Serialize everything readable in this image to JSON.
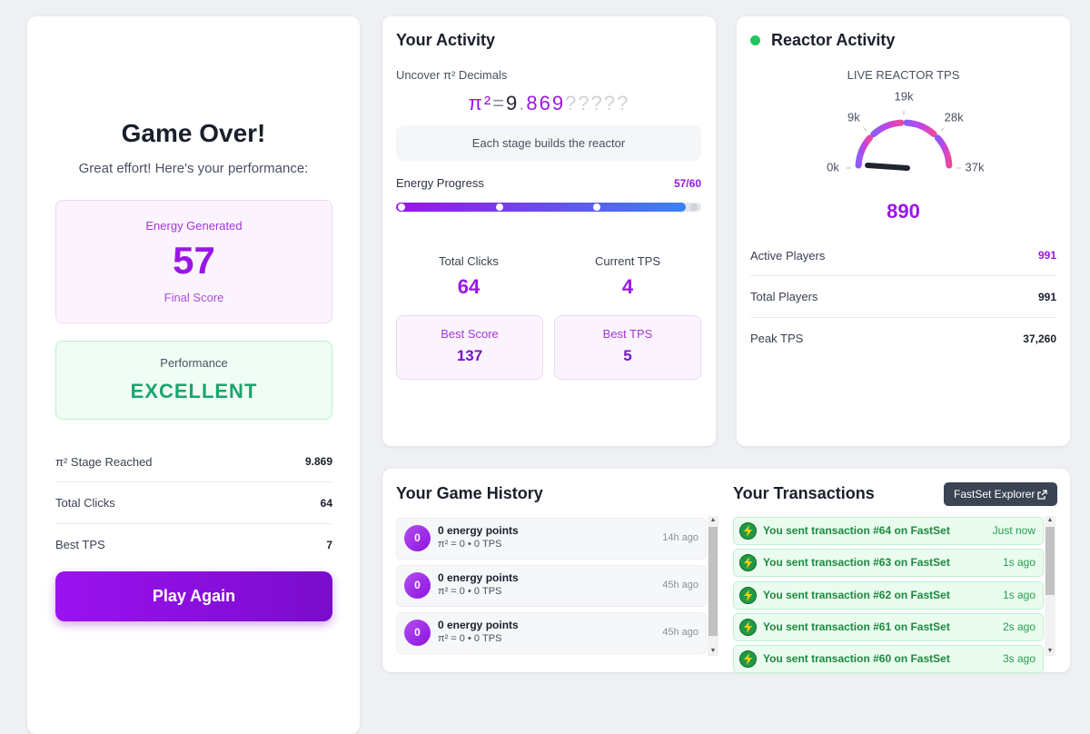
{
  "game_over": {
    "title": "Game Over!",
    "subtitle": "Great effort! Here's your performance:",
    "energy": {
      "label": "Energy Generated",
      "value": "57",
      "caption": "Final Score"
    },
    "performance": {
      "label": "Performance",
      "value": "EXCELLENT"
    },
    "stats": [
      {
        "label": "π² Stage Reached",
        "value": "9.869"
      },
      {
        "label": "Total Clicks",
        "value": "64"
      },
      {
        "label": "Best TPS",
        "value": "7"
      }
    ],
    "button": "Play Again"
  },
  "activity": {
    "title": "Your Activity",
    "decimals_label": "Uncover π² Decimals",
    "pi": {
      "symbol": "π²",
      "equals": "=",
      "integer": "9",
      "dot": ".",
      "found": "869",
      "hidden": "?????"
    },
    "hint": "Each stage builds the reactor",
    "progress": {
      "label": "Energy Progress",
      "value": 57,
      "separator": "/",
      "max": 60
    },
    "stats": [
      {
        "label": "Total Clicks",
        "value": "64"
      },
      {
        "label": "Current TPS",
        "value": "4"
      }
    ],
    "bests": [
      {
        "label": "Best Score",
        "value": "137"
      },
      {
        "label": "Best TPS",
        "value": "5"
      }
    ]
  },
  "reactor": {
    "title": "Reactor Activity",
    "gauge": {
      "label": "LIVE REACTOR TPS",
      "value": 890,
      "ticks": [
        {
          "value": 0,
          "label": "0k"
        },
        {
          "value": 9315,
          "label": "9k"
        },
        {
          "value": 18630,
          "label": "19k"
        },
        {
          "value": 27945,
          "label": "28k"
        },
        {
          "value": 37260,
          "label": "37k"
        }
      ]
    },
    "rows": [
      {
        "label": "Active Players",
        "value": "991"
      },
      {
        "label": "Total Players",
        "value": "991"
      },
      {
        "label": "Peak TPS",
        "value": "37,260"
      }
    ]
  },
  "history": {
    "title": "Your Game History",
    "items": [
      {
        "icon": "0",
        "title": "0 energy points",
        "detail": "π² = 0 • 0 TPS",
        "time": "14h ago"
      },
      {
        "icon": "0",
        "title": "0 energy points",
        "detail": "π² = 0 • 0 TPS",
        "time": "45h ago"
      },
      {
        "icon": "0",
        "title": "0 energy points",
        "detail": "π² = 0 • 0 TPS",
        "time": "45h ago"
      }
    ]
  },
  "transactions": {
    "title": "Your Transactions",
    "button": "FastSet Explorer",
    "items": [
      {
        "text": "You sent transaction #64 on FastSet",
        "time": "Just now"
      },
      {
        "text": "You sent transaction #63 on FastSet",
        "time": "1s ago"
      },
      {
        "text": "You sent transaction #62 on FastSet",
        "time": "1s ago"
      },
      {
        "text": "You sent transaction #61 on FastSet",
        "time": "2s ago"
      },
      {
        "text": "You sent transaction #60 on FastSet",
        "time": "3s ago"
      }
    ]
  }
}
